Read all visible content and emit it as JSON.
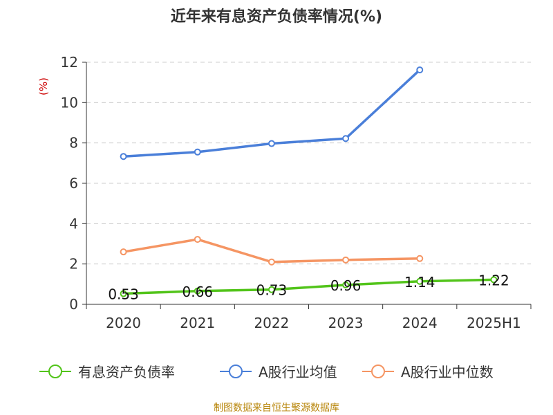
{
  "title": "近年来有息资产负债率情况(%)",
  "source": "制图数据来自恒生聚源数据库",
  "chart_data": {
    "type": "line",
    "title": "近年来有息资产负债率情况(%)",
    "ylabel": "(%)",
    "xlabel": "",
    "categories": [
      "2020",
      "2021",
      "2022",
      "2023",
      "2024",
      "2025H1"
    ],
    "ylim": [
      0,
      12
    ],
    "yticks": [
      0,
      2,
      4,
      6,
      8,
      10,
      12
    ],
    "grid": true,
    "legend_position": "bottom",
    "series": [
      {
        "name": "有息资产负债率",
        "color": "#52c41a",
        "values": [
          0.53,
          0.66,
          0.73,
          0.96,
          1.14,
          1.22
        ],
        "data_labels": [
          "0.53",
          "0.66",
          "0.73",
          "0.96",
          "1.14",
          "1.22"
        ]
      },
      {
        "name": "A股行业均值",
        "color": "#4a7fd9",
        "values": [
          7.33,
          7.55,
          7.97,
          8.22,
          11.62,
          null
        ]
      },
      {
        "name": "A股行业中位数",
        "color": "#f59563",
        "values": [
          2.6,
          3.22,
          2.1,
          2.2,
          2.27,
          null
        ]
      }
    ]
  }
}
